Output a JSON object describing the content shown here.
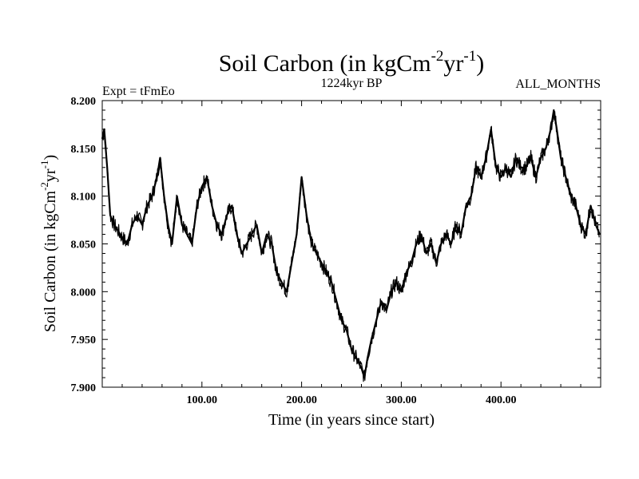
{
  "chart_data": {
    "type": "line",
    "title": {
      "base": "Soil Carbon (in kgCm",
      "exp1": "-2",
      "mid": "yr",
      "exp2": "-1",
      "end": ")"
    },
    "subtitle_left": "Expt = tFmEo",
    "subtitle_center": "1224kyr BP",
    "subtitle_right": "ALL_MONTHS",
    "xlabel": "Time (in years since start)",
    "ylabel": {
      "base": "Soil Carbon (in kgCm",
      "exp1": "-2",
      "mid": "yr",
      "exp2": "-1",
      "end": ")"
    },
    "xlim": [
      0,
      500
    ],
    "ylim": [
      7.9,
      8.2
    ],
    "x_ticks": [
      100,
      200,
      300,
      400
    ],
    "x_tick_labels": [
      "100.00",
      "200.00",
      "300.00",
      "400.00"
    ],
    "y_ticks": [
      7.9,
      7.95,
      8.0,
      8.05,
      8.1,
      8.15,
      8.2
    ],
    "y_tick_labels": [
      "7.900",
      "7.950",
      "8.000",
      "8.050",
      "8.100",
      "8.150",
      "8.200"
    ],
    "line_color": "#000000",
    "series": [
      {
        "name": "Soil Carbon",
        "x": [
          0,
          2,
          5,
          8,
          12,
          18,
          25,
          30,
          35,
          40,
          45,
          50,
          55,
          58,
          62,
          66,
          70,
          75,
          80,
          85,
          90,
          95,
          100,
          105,
          110,
          115,
          120,
          125,
          130,
          135,
          140,
          145,
          150,
          155,
          160,
          165,
          170,
          175,
          180,
          185,
          190,
          195,
          200,
          205,
          210,
          215,
          220,
          225,
          230,
          235,
          240,
          245,
          250,
          255,
          260,
          263,
          266,
          270,
          275,
          280,
          285,
          290,
          295,
          300,
          305,
          310,
          315,
          320,
          325,
          330,
          335,
          340,
          345,
          350,
          355,
          360,
          365,
          370,
          375,
          380,
          385,
          390,
          395,
          400,
          405,
          410,
          415,
          420,
          425,
          430,
          435,
          440,
          445,
          450,
          453,
          456,
          460,
          465,
          470,
          475,
          480,
          485,
          490,
          495,
          499
        ],
        "values": [
          8.16,
          8.17,
          8.13,
          8.08,
          8.07,
          8.06,
          8.05,
          8.07,
          8.08,
          8.07,
          8.09,
          8.1,
          8.12,
          8.14,
          8.1,
          8.07,
          8.05,
          8.1,
          8.07,
          8.06,
          8.05,
          8.09,
          8.11,
          8.12,
          8.09,
          8.07,
          8.06,
          8.08,
          8.09,
          8.06,
          8.04,
          8.05,
          8.06,
          8.07,
          8.04,
          8.06,
          8.05,
          8.02,
          8.01,
          8.0,
          8.03,
          8.06,
          8.12,
          8.08,
          8.05,
          8.04,
          8.03,
          8.02,
          8.01,
          7.99,
          7.97,
          7.96,
          7.94,
          7.93,
          7.92,
          7.91,
          7.93,
          7.95,
          7.97,
          7.99,
          7.98,
          8.0,
          8.01,
          8.0,
          8.02,
          8.03,
          8.05,
          8.06,
          8.04,
          8.05,
          8.03,
          8.05,
          8.06,
          8.05,
          8.07,
          8.06,
          8.09,
          8.1,
          8.13,
          8.12,
          8.14,
          8.17,
          8.13,
          8.12,
          8.13,
          8.12,
          8.14,
          8.13,
          8.13,
          8.14,
          8.12,
          8.14,
          8.15,
          8.17,
          8.19,
          8.17,
          8.14,
          8.12,
          8.1,
          8.09,
          8.07,
          8.06,
          8.09,
          8.07,
          8.06
        ]
      }
    ]
  }
}
